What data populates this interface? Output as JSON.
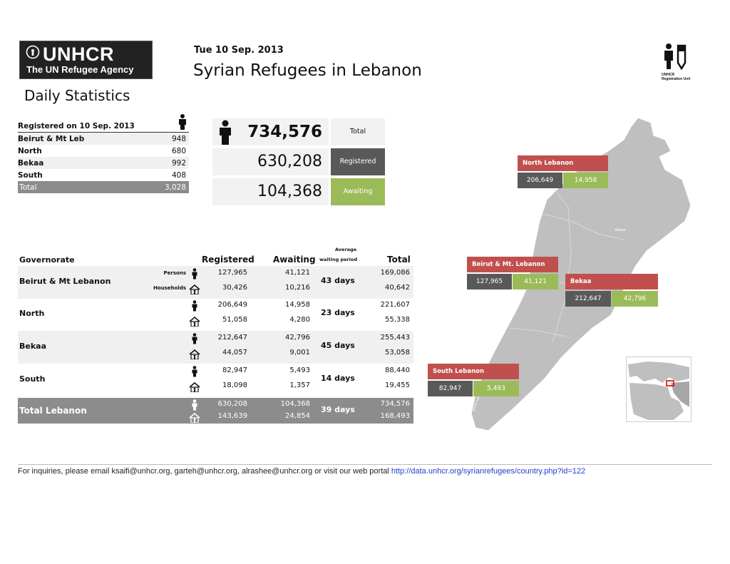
{
  "logo": {
    "name": "UNHCR",
    "tagline": "The UN Refugee Agency"
  },
  "header": {
    "date": "Tue 10 Sep. 2013",
    "title": "Syrian Refugees in Lebanon",
    "subtitle": "Daily Statistics",
    "unit_label_1": "UNHCR",
    "unit_label_2": "Registration Unit"
  },
  "daily_table": {
    "heading": "Registered on 10 Sep. 2013",
    "rows": [
      {
        "name": "Beirut & Mt Leb",
        "value": "948"
      },
      {
        "name": "North",
        "value": "680"
      },
      {
        "name": "Bekaa",
        "value": "992"
      },
      {
        "name": "South",
        "value": "408"
      }
    ],
    "total": {
      "name": "Total",
      "value": "3,028"
    }
  },
  "summary": {
    "total": {
      "value": "734,576",
      "label": "Total"
    },
    "registered": {
      "value": "630,208",
      "label": "Registered"
    },
    "awaiting": {
      "value": "104,368",
      "label": "Awaiting"
    }
  },
  "governorate_table": {
    "headers": {
      "governorate": "Governorate",
      "registered": "Registered",
      "awaiting": "Awaiting",
      "average_1": "Average",
      "average_2": "waiting period",
      "total": "Total"
    },
    "persons_label": "Persons",
    "households_label": "Households",
    "rows": [
      {
        "name": "Beirut & Mt Lebanon",
        "reg_p": "127,965",
        "reg_h": "30,426",
        "aw_p": "41,121",
        "aw_h": "10,216",
        "wait": "43 days",
        "tot_p": "169,086",
        "tot_h": "40,642"
      },
      {
        "name": "North",
        "reg_p": "206,649",
        "reg_h": "51,058",
        "aw_p": "14,958",
        "aw_h": "4,280",
        "wait": "23 days",
        "tot_p": "221,607",
        "tot_h": "55,338"
      },
      {
        "name": "Bekaa",
        "reg_p": "212,647",
        "reg_h": "44,057",
        "aw_p": "42,796",
        "aw_h": "9,001",
        "wait": "45 days",
        "tot_p": "255,443",
        "tot_h": "53,058"
      },
      {
        "name": "South",
        "reg_p": "82,947",
        "reg_h": "18,098",
        "aw_p": "5,493",
        "aw_h": "1,357",
        "wait": "14 days",
        "tot_p": "88,440",
        "tot_h": "19,455"
      }
    ],
    "total": {
      "name": "Total Lebanon",
      "reg_p": "630,208",
      "reg_h": "143,639",
      "aw_p": "104,368",
      "aw_h": "24,854",
      "wait": "39 days",
      "tot_p": "734,576",
      "tot_h": "168,493"
    }
  },
  "map": {
    "callouts": [
      {
        "title": "North Lebanon",
        "registered": "206,649",
        "awaiting": "14,958"
      },
      {
        "title": "Beirut & Mt. Lebanon",
        "registered": "127,965",
        "awaiting": "41,121"
      },
      {
        "title": "Bekaa",
        "registered": "212,647",
        "awaiting": "42,796"
      },
      {
        "title": "South Lebanon",
        "registered": "82,947",
        "awaiting": "5,493"
      }
    ],
    "labels": {
      "bekaa_region": "Bekaa",
      "south_region": "South Lebanon"
    },
    "colors": {
      "title": "#c0504d",
      "registered": "#595959",
      "awaiting": "#9bbb59",
      "land": "#bfbfbf"
    }
  },
  "footer": {
    "text": "For inquiries, please email ksaifi@unhcr.org, garteh@unhcr.org, alrashee@unhcr.org or visit our web portal",
    "link": "http://data.unhcr.org/syrianrefugees/country.php?id=122"
  }
}
